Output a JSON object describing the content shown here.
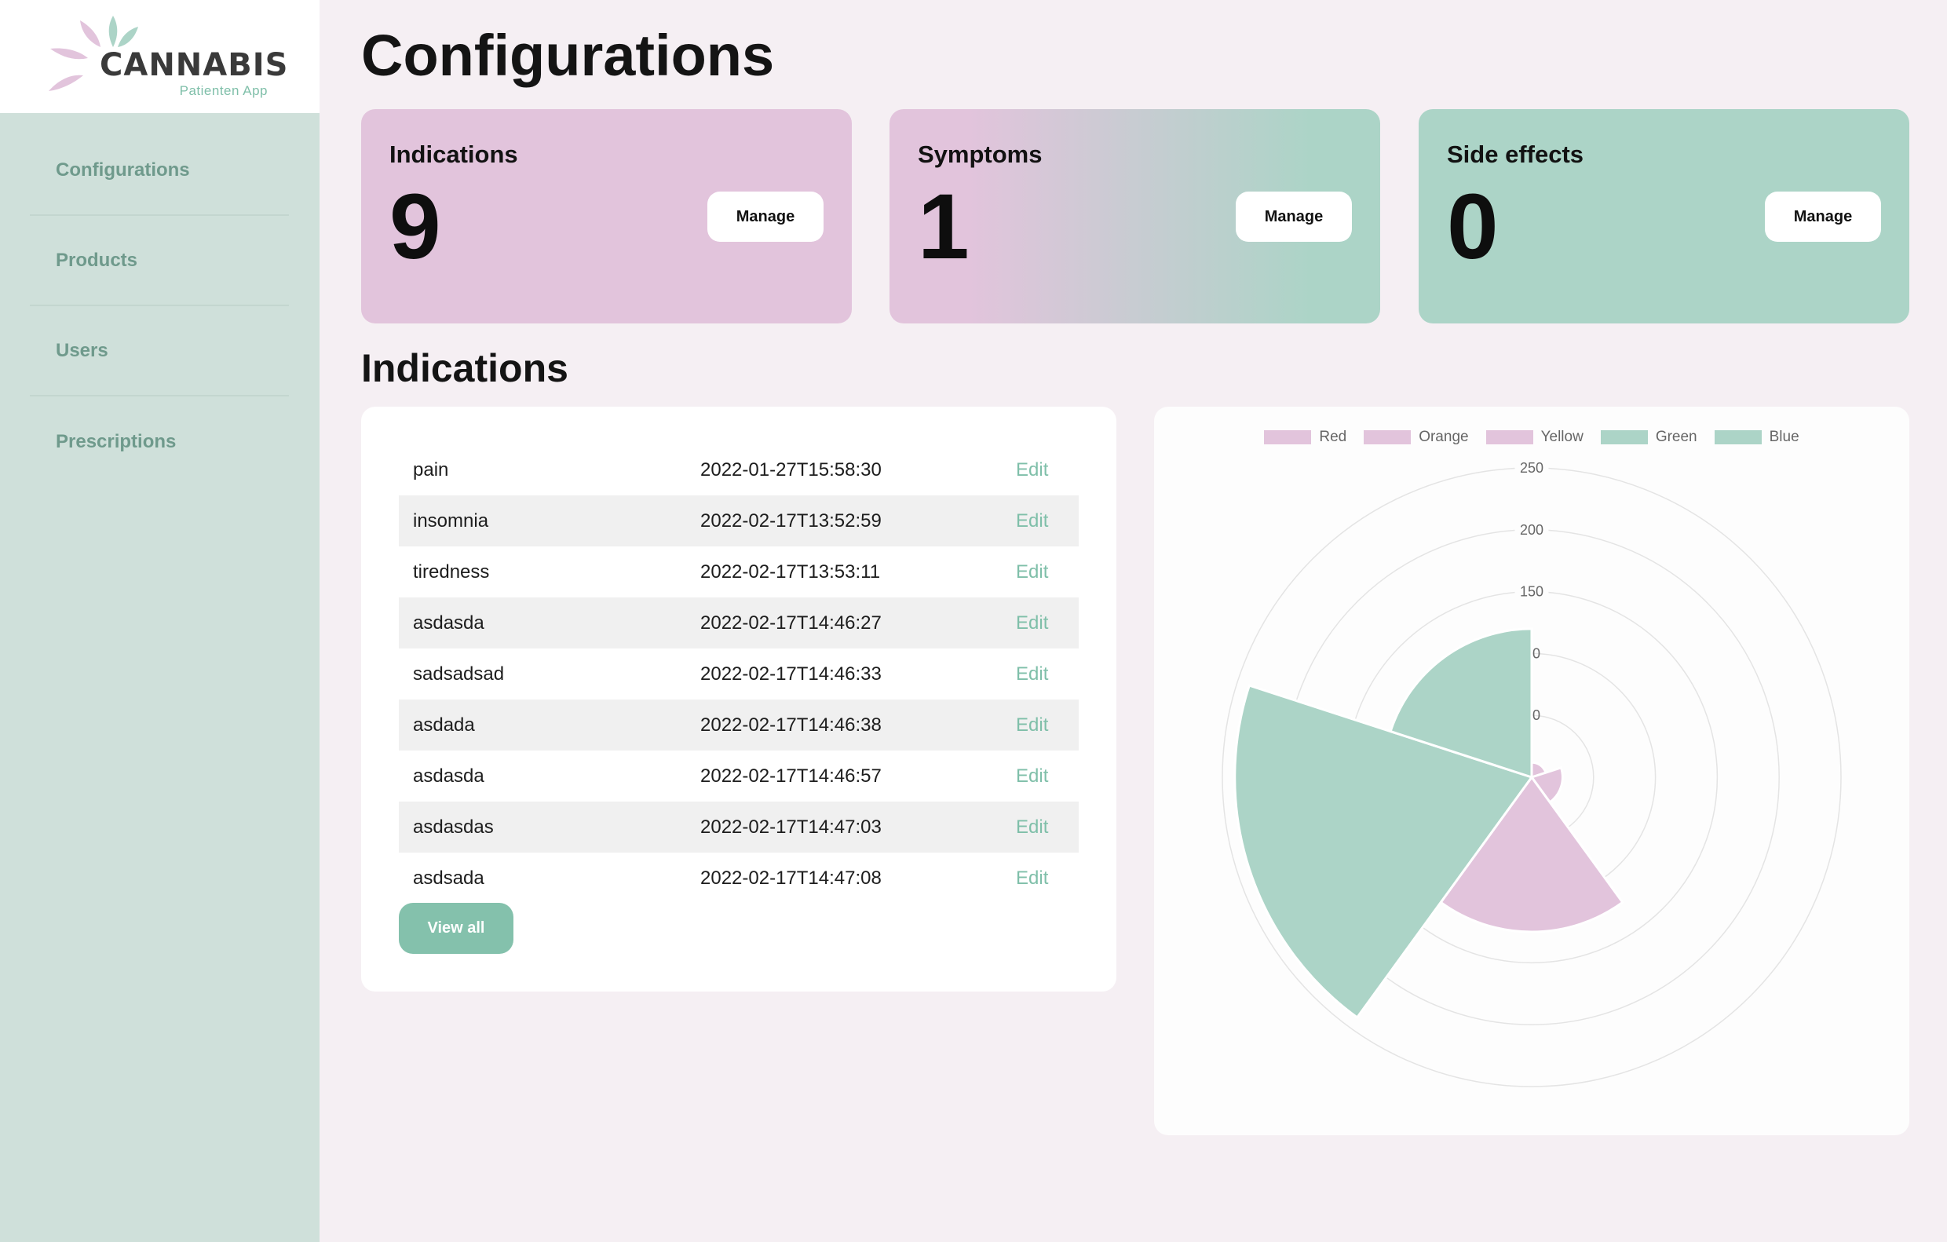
{
  "brand": {
    "name": "CANNABIS",
    "subtitle": "Patienten App",
    "colors": {
      "pink": "#e2c4dc",
      "green": "#acd4c7",
      "accent": "#84c1ac"
    }
  },
  "sidebar": {
    "items": [
      {
        "label": "Configurations"
      },
      {
        "label": "Products"
      },
      {
        "label": "Users"
      },
      {
        "label": "Prescriptions"
      }
    ]
  },
  "page": {
    "title": "Configurations"
  },
  "stats": [
    {
      "title": "Indications",
      "value": "9",
      "button": "Manage"
    },
    {
      "title": "Symptoms",
      "value": "1",
      "button": "Manage"
    },
    {
      "title": "Side effects",
      "value": "0",
      "button": "Manage"
    }
  ],
  "indications": {
    "title": "Indications",
    "edit_label": "Edit",
    "view_all": "View all",
    "rows": [
      {
        "name": "pain",
        "date": "2022-01-27T15:58:30"
      },
      {
        "name": "insomnia",
        "date": "2022-02-17T13:52:59"
      },
      {
        "name": "tiredness",
        "date": "2022-02-17T13:53:11"
      },
      {
        "name": "asdasda",
        "date": "2022-02-17T14:46:27"
      },
      {
        "name": "sadsadsad",
        "date": "2022-02-17T14:46:33"
      },
      {
        "name": "asdada",
        "date": "2022-02-17T14:46:38"
      },
      {
        "name": "asdasda",
        "date": "2022-02-17T14:46:57"
      },
      {
        "name": "asdasdas",
        "date": "2022-02-17T14:47:03"
      },
      {
        "name": "asdsada",
        "date": "2022-02-17T14:47:08"
      }
    ]
  },
  "chart_data": {
    "type": "polarArea",
    "labels": [
      "Red",
      "Orange",
      "Yellow",
      "Green",
      "Blue"
    ],
    "values": [
      12,
      25,
      125,
      240,
      120
    ],
    "colors": [
      "#e2c4dc",
      "#e2c4dc",
      "#e2c4dc",
      "#acd4c7",
      "#acd4c7"
    ],
    "r_ticks": [
      "0",
      "0",
      "150",
      "200",
      "250"
    ],
    "r_max": 250,
    "legend_position": "top",
    "grid": true
  }
}
